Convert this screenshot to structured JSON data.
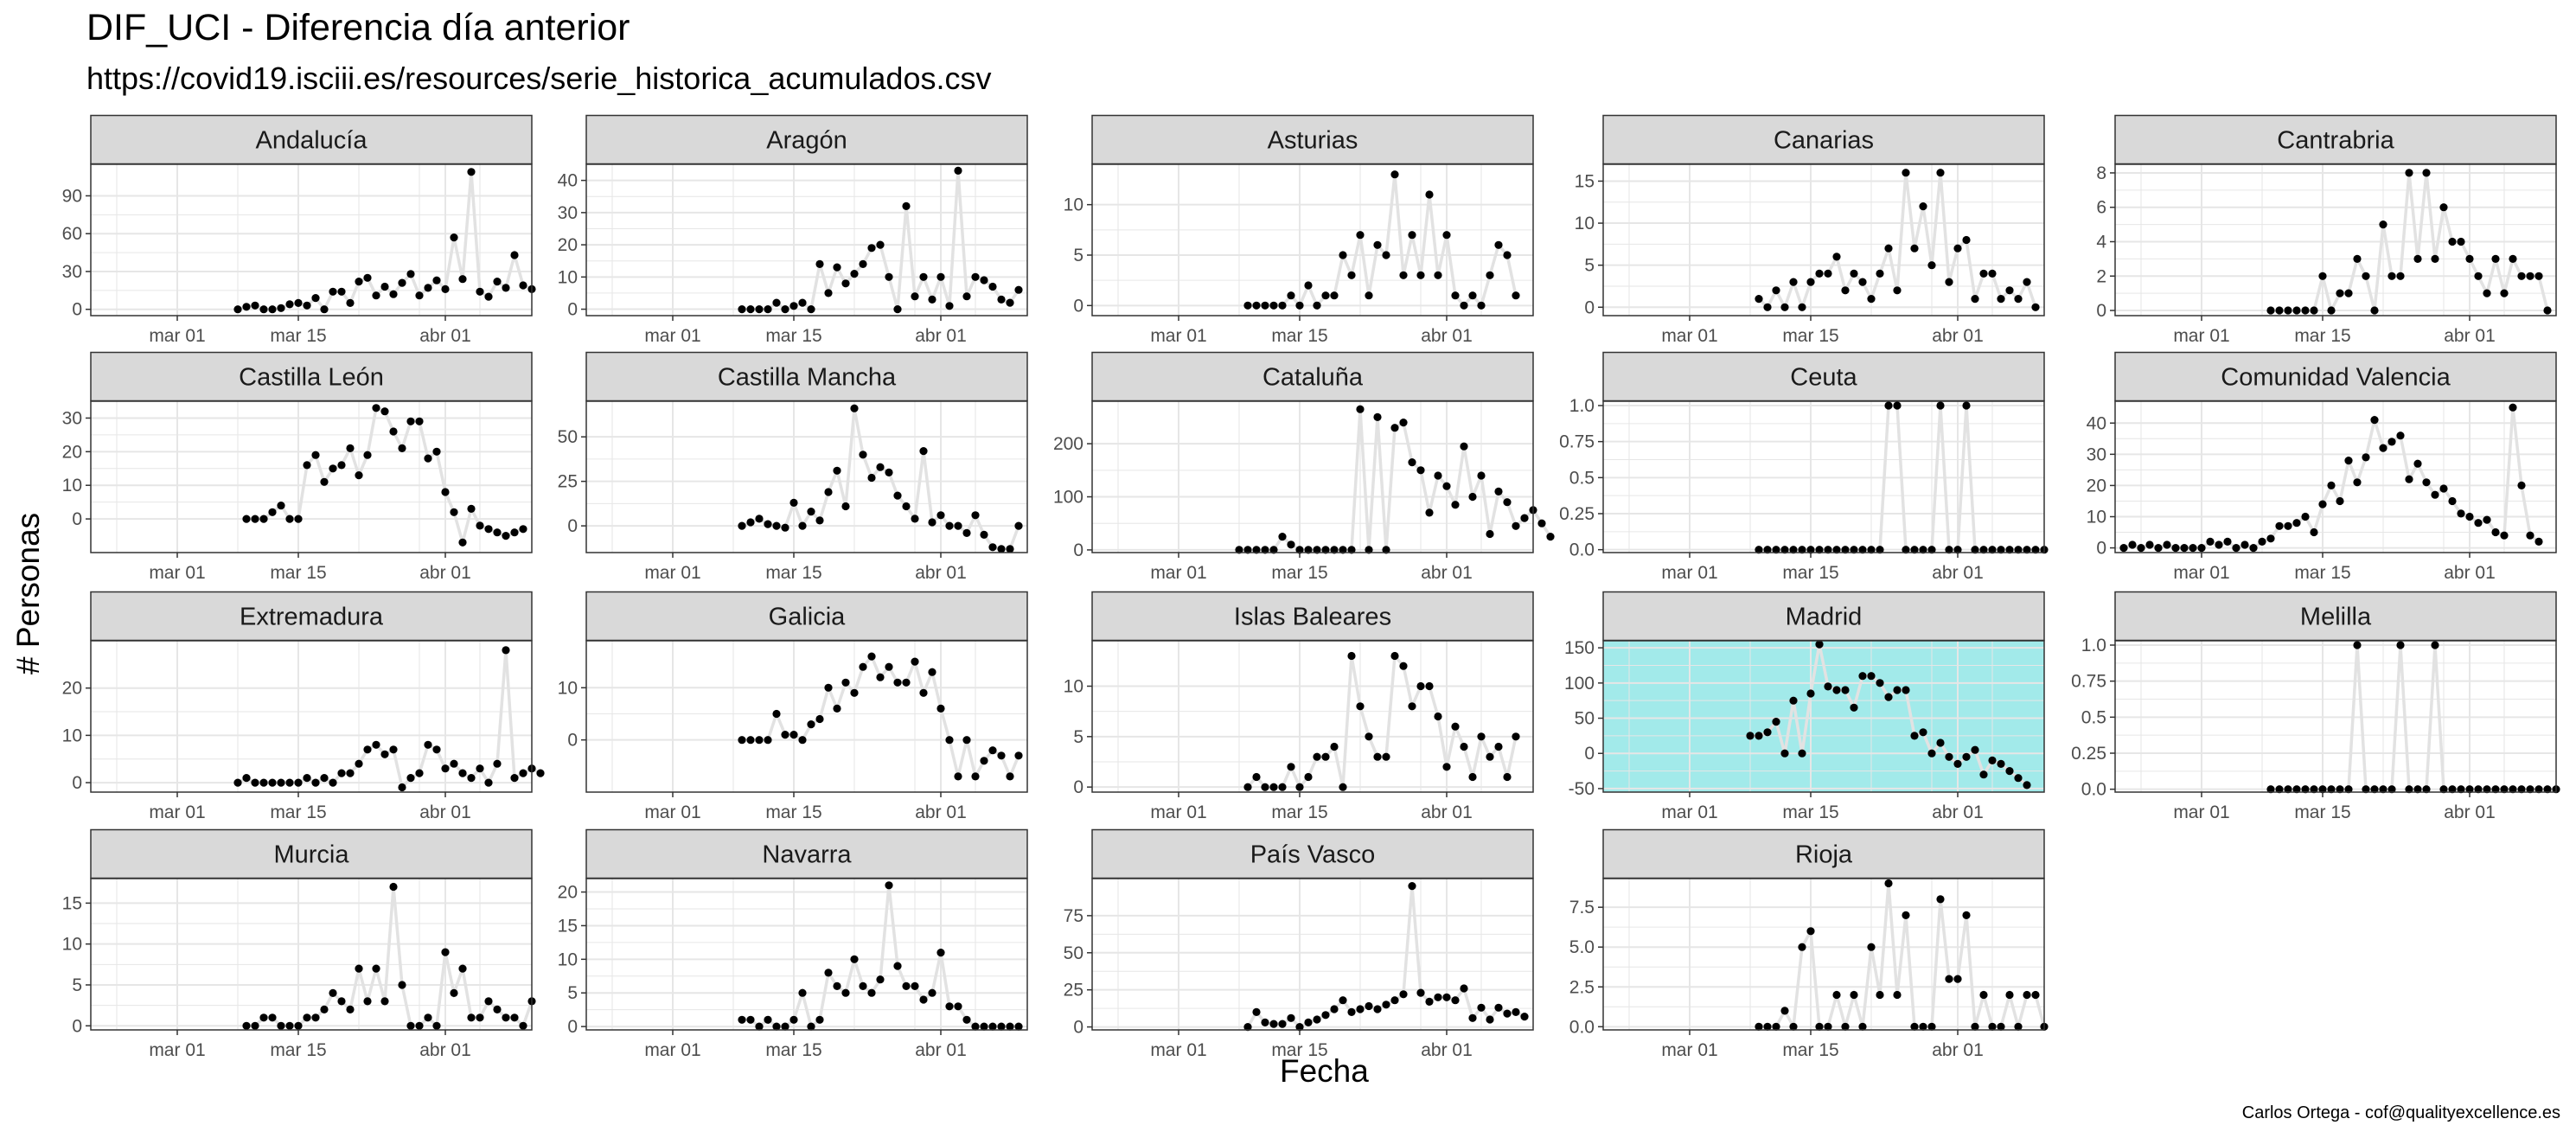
{
  "title": "DIF_UCI - Diferencia día anterior",
  "subtitle": "https://covid19.isciii.es/resources/serie_historica_acumulados.csv",
  "xlabel": "Fecha",
  "ylabel": "# Personas",
  "caption": "Carlos Ortega - cof@qualityexcellence.es",
  "colors": {
    "strip_fill": "#d9d9d9",
    "panel_border": "#333333",
    "grid": "#e6e6e6",
    "point": "#000000",
    "line": "#e2e2e2",
    "highlight_fill": "#a2eaea"
  },
  "chart_data": {
    "type": "scatter",
    "layout": "facet_wrap",
    "ncol": 5,
    "x_start": "2020-02-20",
    "x_end": "2020-04-11",
    "x_ticks": [
      {
        "date": "2020-03-01",
        "label": "mar 01"
      },
      {
        "date": "2020-03-15",
        "label": "mar 15"
      },
      {
        "date": "2020-04-01",
        "label": "abr 01"
      }
    ],
    "grid": true,
    "panels": [
      {
        "name": "Andalucía",
        "ylim": [
          -5,
          115
        ],
        "yticks": [
          0,
          30,
          60,
          90
        ],
        "start": "2020-03-08",
        "values": [
          0,
          2,
          3,
          0,
          0,
          1,
          4,
          5,
          3,
          9,
          0,
          14,
          14,
          5,
          22,
          25,
          11,
          18,
          12,
          21,
          28,
          11,
          17,
          23,
          16,
          57,
          24,
          109,
          14,
          10,
          22,
          17,
          43,
          19,
          16
        ]
      },
      {
        "name": "Aragón",
        "ylim": [
          -2,
          45
        ],
        "yticks": [
          0,
          10,
          20,
          30,
          40
        ],
        "start": "2020-03-09",
        "values": [
          0,
          0,
          0,
          0,
          2,
          0,
          1,
          2,
          0,
          14,
          5,
          13,
          8,
          11,
          14,
          19,
          20,
          10,
          0,
          32,
          4,
          10,
          3,
          10,
          1,
          43,
          4,
          10,
          9,
          7,
          3,
          2,
          6
        ]
      },
      {
        "name": "Asturias",
        "ylim": [
          -1,
          14
        ],
        "yticks": [
          0,
          5,
          10
        ],
        "start": "2020-03-09",
        "values": [
          0,
          0,
          0,
          0,
          0,
          1,
          0,
          2,
          0,
          1,
          1,
          5,
          3,
          7,
          1,
          6,
          5,
          13,
          3,
          7,
          3,
          11,
          3,
          7,
          1,
          0,
          1,
          0,
          3,
          6,
          5,
          1
        ]
      },
      {
        "name": "Canarias",
        "ylim": [
          -1,
          17
        ],
        "yticks": [
          0,
          5,
          10,
          15
        ],
        "start": "2020-03-09",
        "values": [
          1,
          0,
          2,
          0,
          3,
          0,
          3,
          4,
          4,
          6,
          2,
          4,
          3,
          1,
          4,
          7,
          2,
          16,
          7,
          12,
          5,
          16,
          3,
          7,
          8,
          1,
          4,
          4,
          1,
          2,
          1,
          3,
          0
        ]
      },
      {
        "name": "Cantrabria",
        "ylim": [
          -0.3,
          8.5
        ],
        "yticks": [
          0,
          2,
          4,
          6,
          8
        ],
        "start": "2020-03-09",
        "values": [
          0,
          0,
          0,
          0,
          0,
          0,
          2,
          0,
          1,
          1,
          3,
          2,
          0,
          5,
          2,
          2,
          8,
          3,
          8,
          3,
          6,
          4,
          4,
          3,
          2,
          1,
          3,
          1,
          3,
          2,
          2,
          2,
          0
        ]
      },
      {
        "name": "Castilla León",
        "ylim": [
          -10,
          35
        ],
        "yticks": [
          0,
          10,
          20,
          30
        ],
        "start": "2020-03-09",
        "values": [
          0,
          0,
          0,
          2,
          4,
          0,
          0,
          16,
          19,
          11,
          15,
          16,
          21,
          13,
          19,
          33,
          32,
          26,
          21,
          29,
          29,
          18,
          20,
          8,
          2,
          -7,
          3,
          -2,
          -3,
          -4,
          -5,
          -4,
          -3
        ]
      },
      {
        "name": "Castilla Mancha",
        "ylim": [
          -15,
          70
        ],
        "yticks": [
          0,
          25,
          50
        ],
        "start": "2020-03-09",
        "values": [
          0,
          2,
          4,
          1,
          0,
          -1,
          13,
          0,
          8,
          3,
          19,
          31,
          11,
          66,
          40,
          27,
          33,
          30,
          17,
          11,
          4,
          42,
          2,
          6,
          0,
          0,
          -4,
          6,
          -5,
          -12,
          -13,
          -13,
          0
        ]
      },
      {
        "name": "Cataluña",
        "ylim": [
          -5,
          280
        ],
        "yticks": [
          0,
          100,
          200
        ],
        "start": "2020-03-08",
        "values": [
          0,
          0,
          0,
          0,
          0,
          25,
          10,
          0,
          0,
          0,
          0,
          0,
          0,
          0,
          265,
          0,
          250,
          0,
          230,
          240,
          165,
          150,
          70,
          140,
          120,
          85,
          195,
          100,
          140,
          30,
          110,
          90,
          45,
          60,
          75,
          50,
          25
        ]
      },
      {
        "name": "Ceuta",
        "ylim": [
          -0.02,
          1.03
        ],
        "yticks": [
          0.0,
          0.25,
          0.5,
          0.75,
          1.0
        ],
        "start": "2020-03-09",
        "values": [
          0,
          0,
          0,
          0,
          0,
          0,
          0,
          0,
          0,
          0,
          0,
          0,
          0,
          0,
          0,
          1,
          1,
          0,
          0,
          0,
          0,
          1,
          0,
          0,
          1,
          0,
          0,
          0,
          0,
          0,
          0,
          0,
          0,
          0
        ]
      },
      {
        "name": "Comunidad Valencia",
        "ylim": [
          -1.5,
          47
        ],
        "yticks": [
          0,
          10,
          20,
          30,
          40
        ],
        "start": "2020-02-21",
        "values": [
          0,
          1,
          0,
          1,
          0,
          1,
          0,
          0,
          0,
          0,
          2,
          1,
          2,
          0,
          1,
          0,
          2,
          3,
          7,
          7,
          8,
          10,
          5,
          14,
          20,
          15,
          28,
          21,
          29,
          41,
          32,
          34,
          36,
          22,
          27,
          21,
          17,
          19,
          15,
          11,
          10,
          8,
          9,
          5,
          4,
          45,
          20,
          4,
          2
        ]
      },
      {
        "name": "Extremadura",
        "ylim": [
          -2,
          30
        ],
        "yticks": [
          0,
          10,
          20
        ],
        "start": "2020-03-08",
        "values": [
          0,
          1,
          0,
          0,
          0,
          0,
          0,
          0,
          1,
          0,
          1,
          0,
          2,
          2,
          4,
          7,
          8,
          6,
          7,
          -1,
          1,
          2,
          8,
          7,
          3,
          4,
          2,
          1,
          3,
          0,
          4,
          28,
          1,
          2,
          3,
          2
        ]
      },
      {
        "name": "Galicia",
        "ylim": [
          -10,
          19
        ],
        "yticks": [
          0,
          10
        ],
        "start": "2020-03-09",
        "values": [
          0,
          0,
          0,
          0,
          5,
          1,
          1,
          0,
          3,
          4,
          10,
          6,
          11,
          9,
          14,
          16,
          12,
          14,
          11,
          11,
          15,
          9,
          13,
          6,
          0,
          -7,
          0,
          -7,
          -4,
          -2,
          -3,
          -7,
          -3
        ]
      },
      {
        "name": "Islas Baleares",
        "ylim": [
          -0.5,
          14.5
        ],
        "yticks": [
          0,
          5,
          10
        ],
        "start": "2020-03-09",
        "values": [
          0,
          1,
          0,
          0,
          0,
          2,
          0,
          1,
          3,
          3,
          4,
          0,
          13,
          8,
          5,
          3,
          3,
          13,
          12,
          8,
          10,
          10,
          7,
          2,
          6,
          4,
          1,
          5,
          3,
          4,
          1,
          5
        ]
      },
      {
        "name": "Madrid",
        "ylim": [
          -55,
          160
        ],
        "yticks": [
          -50,
          0,
          50,
          100,
          150
        ],
        "highlight": true,
        "start": "2020-03-08",
        "values": [
          25,
          25,
          30,
          45,
          0,
          75,
          0,
          85,
          155,
          95,
          90,
          90,
          65,
          110,
          110,
          100,
          80,
          90,
          90,
          25,
          30,
          0,
          15,
          -5,
          -15,
          -5,
          5,
          -30,
          -10,
          -15,
          -25,
          -35,
          -45
        ]
      },
      {
        "name": "Melilla",
        "ylim": [
          -0.02,
          1.03
        ],
        "yticks": [
          0.0,
          0.25,
          0.5,
          0.75,
          1.0
        ],
        "start": "2020-03-09",
        "values": [
          0,
          0,
          0,
          0,
          0,
          0,
          0,
          0,
          0,
          0,
          1,
          0,
          0,
          0,
          0,
          1,
          0,
          0,
          0,
          1,
          0,
          0,
          0,
          0,
          0,
          0,
          0,
          0,
          0,
          0,
          0,
          0,
          0,
          0
        ]
      },
      {
        "name": "Murcia",
        "ylim": [
          -0.5,
          18
        ],
        "yticks": [
          0,
          5,
          10,
          15
        ],
        "start": "2020-03-09",
        "values": [
          0,
          0,
          1,
          1,
          0,
          0,
          0,
          1,
          1,
          2,
          4,
          3,
          2,
          7,
          3,
          7,
          3,
          17,
          5,
          0,
          0,
          1,
          0,
          9,
          4,
          7,
          1,
          1,
          3,
          2,
          1,
          1,
          0,
          3
        ]
      },
      {
        "name": "Navarra",
        "ylim": [
          -0.5,
          22
        ],
        "yticks": [
          0,
          5,
          10,
          15,
          20
        ],
        "start": "2020-03-09",
        "values": [
          1,
          1,
          0,
          1,
          0,
          0,
          1,
          5,
          0,
          1,
          8,
          6,
          5,
          10,
          6,
          5,
          7,
          21,
          9,
          6,
          6,
          4,
          5,
          11,
          3,
          3,
          1,
          0,
          0,
          0,
          0,
          0,
          0
        ]
      },
      {
        "name": "País Vasco",
        "ylim": [
          -2,
          100
        ],
        "yticks": [
          0,
          25,
          50,
          75
        ],
        "start": "2020-03-09",
        "values": [
          0,
          10,
          3,
          2,
          2,
          6,
          0,
          3,
          5,
          8,
          12,
          18,
          10,
          12,
          14,
          12,
          15,
          18,
          22,
          95,
          23,
          17,
          20,
          20,
          18,
          26,
          6,
          13,
          5,
          13,
          9,
          10,
          7
        ]
      },
      {
        "name": "Rioja",
        "ylim": [
          -0.2,
          9.3
        ],
        "yticks": [
          0.0,
          2.5,
          5.0,
          7.5
        ],
        "start": "2020-03-09",
        "values": [
          0,
          0,
          0,
          1,
          0,
          5,
          6,
          0,
          0,
          2,
          0,
          2,
          0,
          5,
          2,
          9,
          2,
          7,
          0,
          0,
          0,
          8,
          3,
          3,
          7,
          0,
          2,
          0,
          0,
          2,
          0,
          2,
          2,
          0
        ]
      }
    ]
  }
}
